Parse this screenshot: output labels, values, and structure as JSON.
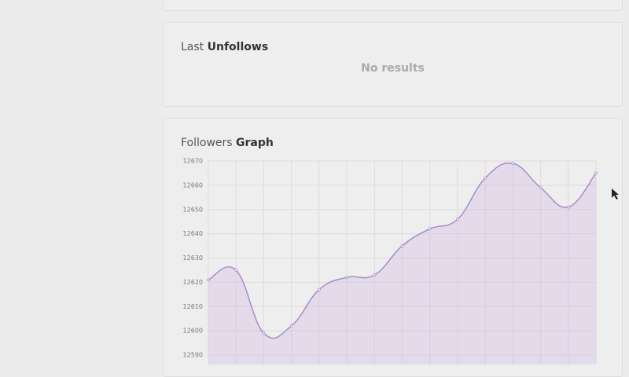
{
  "panels": [
    {
      "title_light": "Last",
      "title_bold": "Unfollows",
      "empty_text": "No results"
    }
  ],
  "followers_graph": {
    "title_light": "Followers",
    "title_bold": "Graph",
    "chart_data": {
      "type": "line",
      "categories": [
        null,
        null,
        null,
        null,
        null,
        null,
        null,
        null,
        null,
        null,
        null,
        null,
        null,
        null,
        null
      ],
      "values": [
        12621,
        12625,
        12599,
        12602,
        12617,
        12622,
        12623,
        12635,
        12642,
        12646,
        12663,
        12669,
        12659,
        12651,
        12665
      ],
      "color": "#a98cc9",
      "ylim": [
        12590,
        12670
      ],
      "yticks": [
        12590,
        12600,
        12610,
        12620,
        12630,
        12640,
        12650,
        12660,
        12670
      ],
      "grid": true
    }
  }
}
